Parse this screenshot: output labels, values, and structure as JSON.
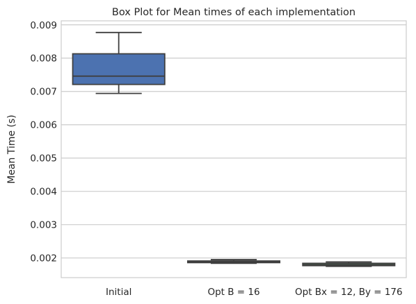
{
  "chart_data": {
    "type": "box",
    "title": "Box Plot for Mean times of each implementation",
    "xlabel": "",
    "ylabel": "Mean Time (s)",
    "ylim": [
      0.00141,
      0.00912
    ],
    "yticks": [
      "0.002",
      "0.003",
      "0.004",
      "0.005",
      "0.006",
      "0.007",
      "0.008",
      "0.009"
    ],
    "ytick_values": [
      0.002,
      0.003,
      0.004,
      0.005,
      0.006,
      0.007,
      0.008,
      0.009
    ],
    "grid": true,
    "categories": [
      "Initial",
      "Opt B = 16",
      "Opt Bx = 12, By = 176"
    ],
    "boxes": [
      {
        "category": "Initial",
        "whisker_low": 0.00694,
        "q1": 0.00721,
        "median": 0.00746,
        "q3": 0.00813,
        "whisker_high": 0.00877,
        "color": "#4c72b0"
      },
      {
        "category": "Opt B = 16",
        "whisker_low": 0.00184,
        "q1": 0.00186,
        "median": 0.00188,
        "q3": 0.00191,
        "whisker_high": 0.00195,
        "color": "#dd8452"
      },
      {
        "category": "Opt Bx = 12, By = 176",
        "whisker_low": 0.00175,
        "q1": 0.00177,
        "median": 0.0018,
        "q3": 0.00184,
        "whisker_high": 0.00188,
        "color": "#55a868"
      }
    ]
  }
}
